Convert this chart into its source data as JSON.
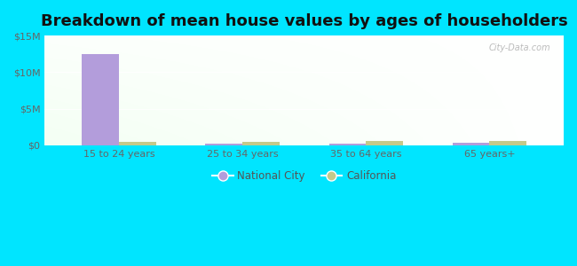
{
  "title": "Breakdown of mean house values by ages of householders",
  "categories": [
    "15 to 24 years",
    "25 to 34 years",
    "35 to 64 years",
    "65 years+"
  ],
  "national_city_values": [
    12500000,
    200000,
    250000,
    350000
  ],
  "california_values": [
    450000,
    450000,
    550000,
    550000
  ],
  "bar_color_national": "#b39ddb",
  "bar_color_california": "#c5c98a",
  "ylim": [
    0,
    15000000
  ],
  "yticks": [
    0,
    5000000,
    10000000,
    15000000
  ],
  "ytick_labels": [
    "$0",
    "$5M",
    "$10M",
    "$15M"
  ],
  "legend_national": "National City",
  "legend_california": "California",
  "outer_bg": "#00e5ff",
  "watermark": "City-Data.com",
  "bar_width": 0.3,
  "title_fontsize": 13
}
